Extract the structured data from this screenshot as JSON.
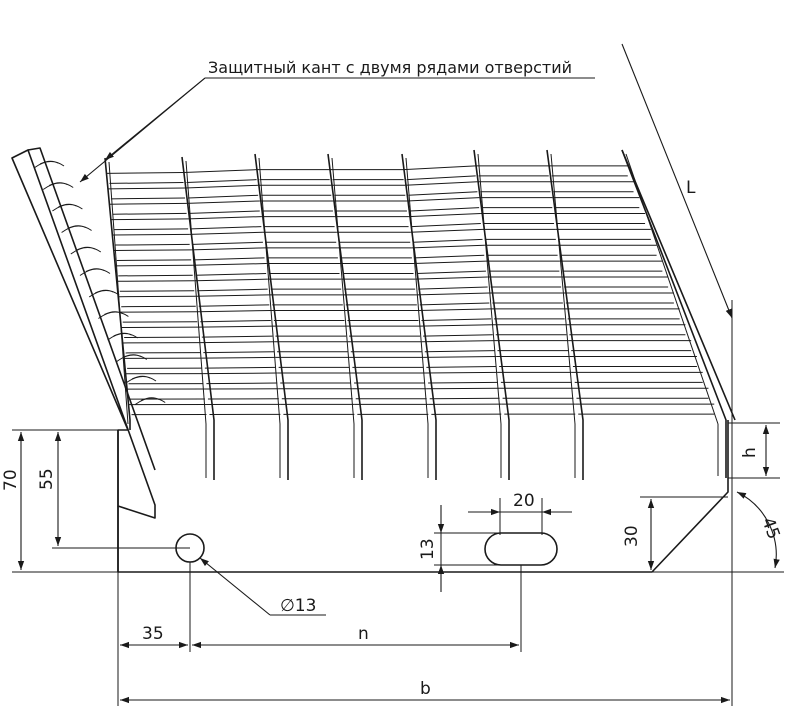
{
  "diagram": {
    "caption": "Защитный кант с двумя рядами отверстий",
    "labels": {
      "L": "L",
      "h": "h",
      "angle": "45",
      "dim_70": "70",
      "dim_55": "55",
      "dim_20": "20",
      "dim_13": "13",
      "dim_30": "30",
      "hole_diameter": "∅13",
      "dim_35": "35",
      "n": "n",
      "b": "b"
    }
  }
}
